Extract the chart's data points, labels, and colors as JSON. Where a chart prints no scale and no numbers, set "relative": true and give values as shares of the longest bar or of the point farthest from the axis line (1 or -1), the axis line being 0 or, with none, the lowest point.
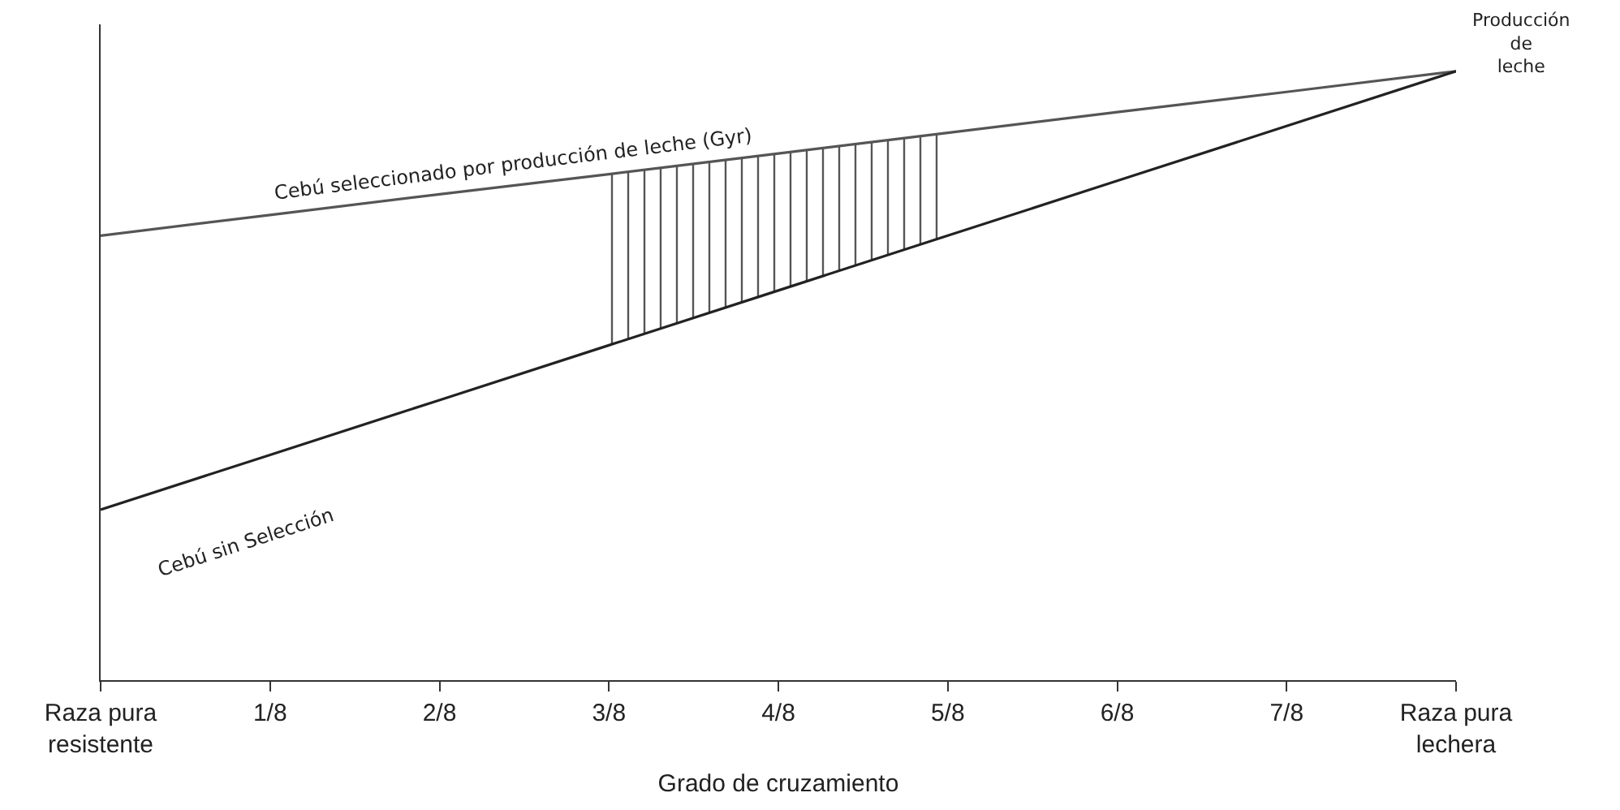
{
  "chart_data": {
    "type": "line",
    "relative": true,
    "xlabel": "Grado de cruzamiento",
    "ylabel": "Producción\nde\nleche",
    "categories": [
      "Raza pura\nresistente",
      "1/8",
      "2/8",
      "3/8",
      "4/8",
      "5/8",
      "6/8",
      "7/8",
      "Raza pura\nlechera"
    ],
    "series": [
      {
        "name": "Cebú seleccionado por producción de leche (Gyr)",
        "color": "#555555",
        "values": [
          0.73,
          0.764,
          0.798,
          0.831,
          0.865,
          0.899,
          0.933,
          0.966,
          1
        ],
        "lower": [
          null,
          null,
          null,
          0.55,
          0.64,
          0.73,
          null,
          null,
          null
        ],
        "upper": [
          null,
          null,
          null,
          0.831,
          0.865,
          0.899,
          null,
          null,
          null
        ]
      },
      {
        "name": "Cebú sin Selección",
        "color": "#222222",
        "values": [
          0.28,
          0.37,
          0.46,
          0.55,
          0.64,
          0.73,
          0.82,
          0.91,
          1
        ]
      }
    ],
    "grid": false,
    "legend": false,
    "marker": "none",
    "line_style": "solid"
  }
}
